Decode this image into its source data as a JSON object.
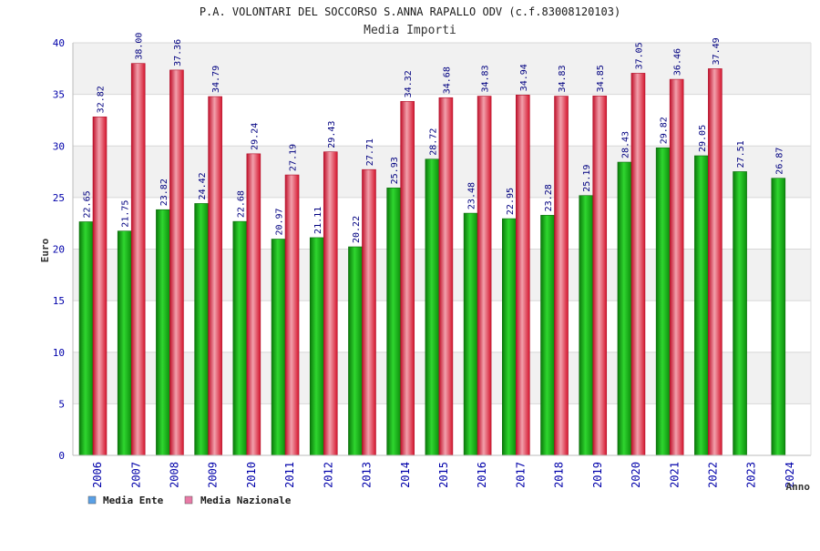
{
  "chart_data": {
    "type": "bar",
    "title": "P.A. VOLONTARI DEL SOCCORSO S.ANNA RAPALLO ODV (c.f.83008120103)",
    "subtitle": "Media Importi",
    "xlabel": "Anno",
    "ylabel": "Euro",
    "ylim": [
      0,
      40
    ],
    "yticks": [
      0,
      5,
      10,
      15,
      20,
      25,
      30,
      35,
      40
    ],
    "categories": [
      "2006",
      "2007",
      "2008",
      "2009",
      "2010",
      "2011",
      "2012",
      "2013",
      "2014",
      "2015",
      "2016",
      "2017",
      "2018",
      "2019",
      "2020",
      "2021",
      "2022",
      "2023",
      "2024"
    ],
    "series": [
      {
        "name": "Media Ente",
        "color": "#14b814",
        "legend_color": "#5aa0e6",
        "values": [
          22.65,
          21.75,
          23.82,
          24.42,
          22.68,
          20.97,
          21.11,
          20.22,
          25.93,
          28.72,
          23.48,
          22.95,
          23.28,
          25.19,
          28.43,
          29.82,
          29.05,
          27.51,
          26.87
        ],
        "labels": [
          "22.65",
          "21.75",
          "23.82",
          "24.42",
          "22.68",
          "20.97",
          "21.11",
          "20.22",
          "25.93",
          "28.72",
          "23.48",
          "22.95",
          "23.28",
          "25.19",
          "28.43",
          "29.82",
          "29.05",
          "27.51",
          "26.87"
        ]
      },
      {
        "name": "Media Nazionale",
        "color": "#e8203a",
        "legend_color": "#e87aa6",
        "values": [
          32.82,
          38.0,
          37.36,
          34.79,
          29.24,
          27.19,
          29.43,
          27.71,
          34.32,
          34.68,
          34.83,
          34.94,
          34.83,
          34.85,
          37.05,
          36.46,
          37.49,
          null,
          null
        ],
        "labels": [
          "32.82",
          "38.00",
          "37.36",
          "34.79",
          "29.24",
          "27.19",
          "29.43",
          "27.71",
          "34.32",
          "34.68",
          "34.83",
          "34.94",
          "34.83",
          "34.85",
          "37.05",
          "36.46",
          "37.49",
          null,
          null
        ]
      }
    ],
    "legend_position": "bottom-left",
    "grid": true
  }
}
